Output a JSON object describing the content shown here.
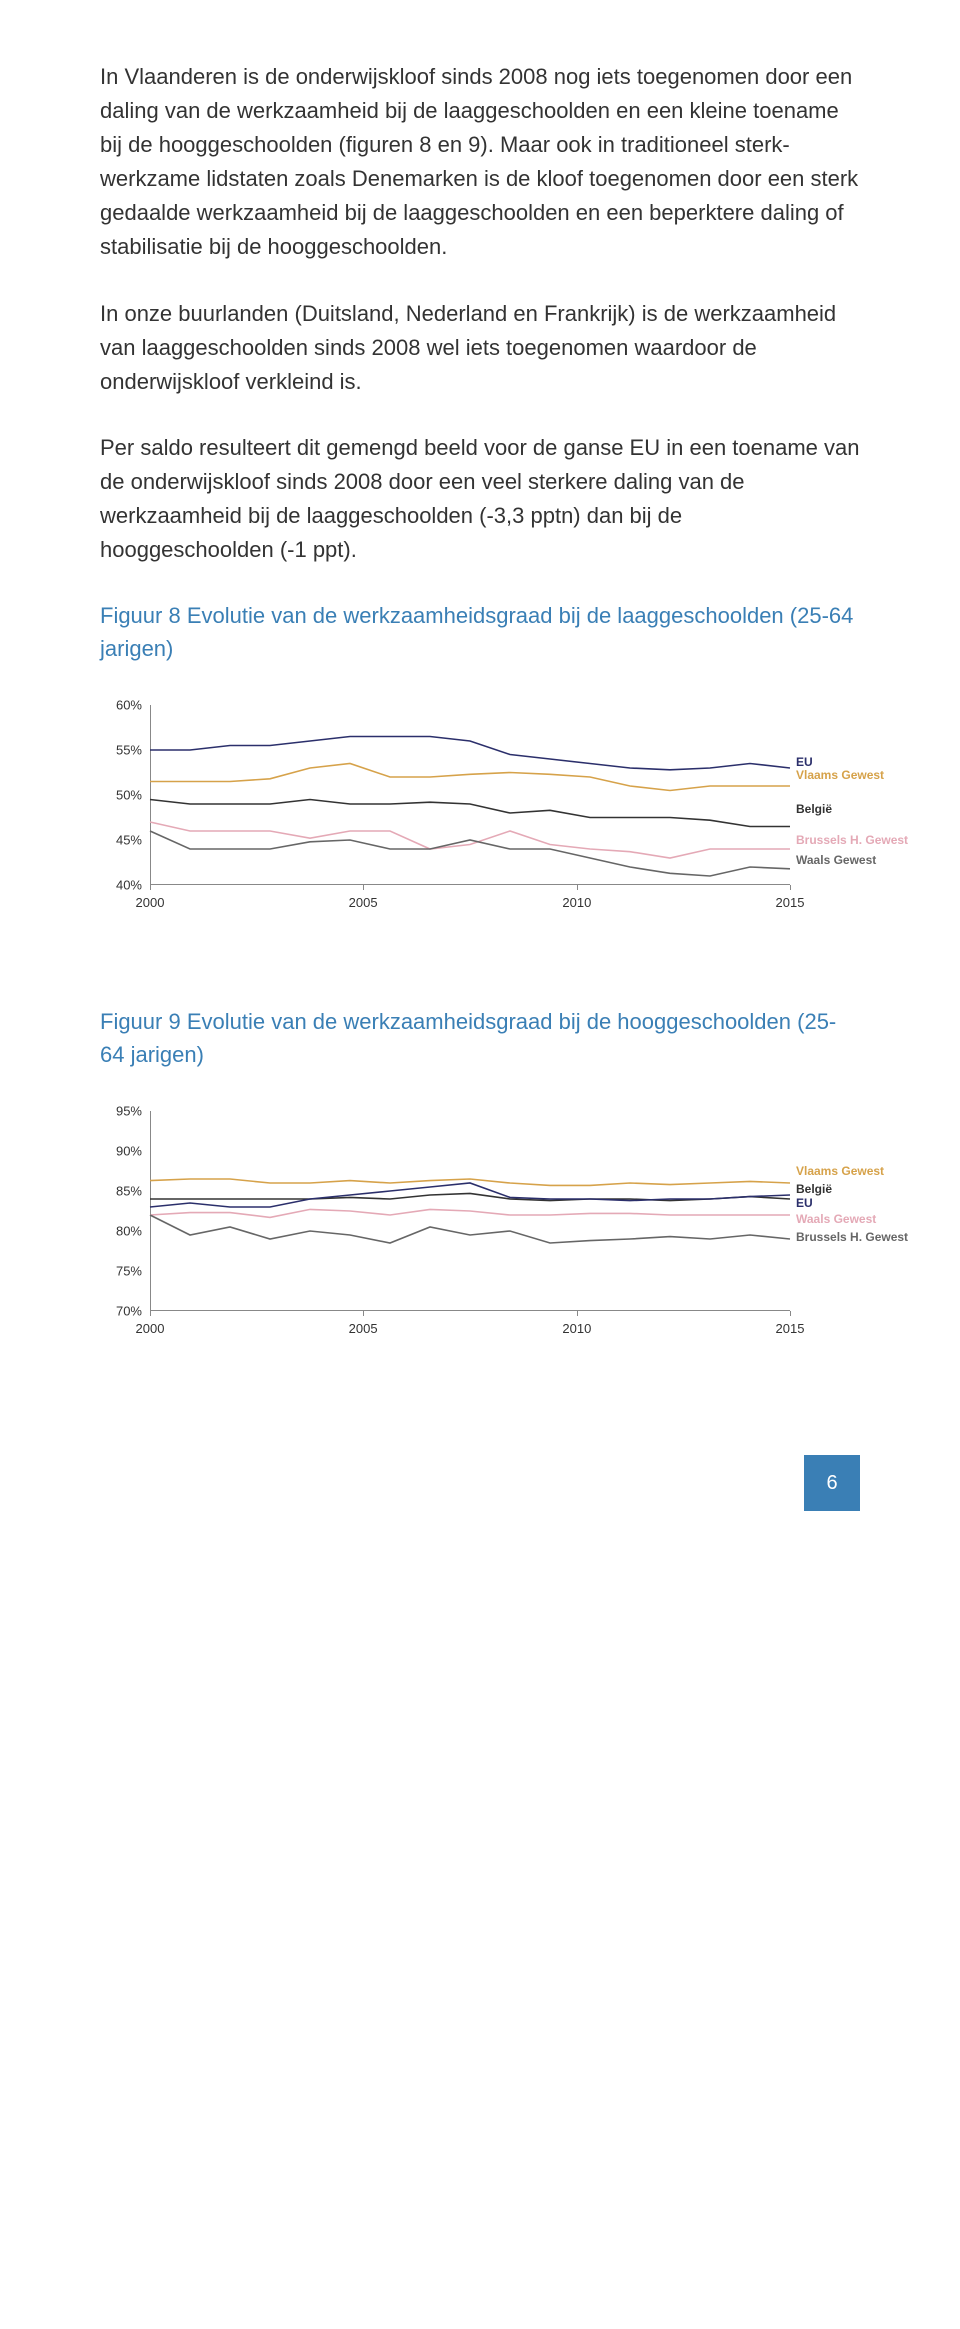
{
  "para1": "In Vlaanderen is de onderwijskloof sinds 2008 nog iets toegenomen door een daling van de werkzaamheid bij de laaggeschoolden en een kleine toename bij de hooggeschoolden (figuren 8 en 9). Maar ook in traditioneel sterk-werkzame lidstaten zoals Denemarken is de kloof toegenomen door een sterk gedaalde werkzaamheid bij de laaggeschoolden en een beperktere daling of stabilisatie bij de hooggeschoolden.",
  "para2": "In onze buurlanden (Duitsland, Nederland en Frankrijk) is de werkzaamheid van laaggeschoolden sinds 2008 wel iets toegenomen waardoor de onderwijskloof verkleind is.",
  "para3": "Per saldo resulteert dit gemengd beeld voor de ganse EU in een toename van de onderwijskloof sinds 2008 door een veel sterkere daling van de werkzaamheid bij de laaggeschoolden (-3,3 pptn) dan bij de hooggeschoolden (-1 ppt).",
  "fig8": {
    "prefix": "Figuur 8",
    "rest": "  Evolutie van de werkzaamheidsgraad bij de laaggeschoolden (25-64 jarigen)",
    "y_labels": [
      "60%",
      "55%",
      "50%",
      "45%",
      "40%"
    ],
    "y_min": 40,
    "y_max": 60,
    "x_labels": [
      "2000",
      "2005",
      "2010",
      "2015"
    ],
    "x_positions": [
      0,
      0.333,
      0.667,
      1.0
    ],
    "series": [
      {
        "name": "EU",
        "color": "#2b2f6b",
        "y": [
          55,
          55,
          55.5,
          55.5,
          56,
          56.5,
          56.5,
          56.5,
          56,
          54.5,
          54,
          53.5,
          53,
          52.8,
          53,
          53.5,
          53
        ],
        "label_y": 53.7
      },
      {
        "name": "Vlaams Gewest",
        "color": "#d6a24a",
        "y": [
          51.5,
          51.5,
          51.5,
          51.8,
          53,
          53.5,
          52,
          52,
          52.3,
          52.5,
          52.3,
          52,
          51,
          50.5,
          51,
          51,
          51
        ],
        "label_y": 52.3
      },
      {
        "name": "België",
        "color": "#333333",
        "y": [
          49.5,
          49,
          49,
          49,
          49.5,
          49,
          49,
          49.2,
          49,
          48,
          48.3,
          47.5,
          47.5,
          47.5,
          47.2,
          46.5,
          46.5
        ],
        "label_y": 48.5
      },
      {
        "name": "Brussels H. Gewest",
        "color": "#e4a9b6",
        "y": [
          47,
          46,
          46,
          46,
          45.2,
          46,
          46,
          44,
          44.5,
          46,
          44.5,
          44,
          43.7,
          43,
          44,
          44,
          44
        ],
        "label_y": 45
      },
      {
        "name": "Waals Gewest",
        "color": "#666666",
        "y": [
          46,
          44,
          44,
          44,
          44.8,
          45,
          44,
          44,
          45,
          44,
          44,
          43,
          42,
          41.3,
          41,
          42,
          41.8
        ],
        "label_y": 42.8
      }
    ]
  },
  "fig9": {
    "prefix": "Figuur 9",
    "rest": "  Evolutie van de werkzaamheidsgraad bij de hooggeschoolden (25-64 jarigen)",
    "y_labels": [
      "95%",
      "90%",
      "85%",
      "80%",
      "75%",
      "70%"
    ],
    "y_min": 70,
    "y_max": 95,
    "x_labels": [
      "2000",
      "2005",
      "2010",
      "2015"
    ],
    "x_positions": [
      0,
      0.333,
      0.667,
      1.0
    ],
    "series": [
      {
        "name": "Vlaams Gewest",
        "color": "#d6a24a",
        "y": [
          86.3,
          86.5,
          86.5,
          86,
          86,
          86.3,
          86,
          86.3,
          86.5,
          86,
          85.7,
          85.7,
          86,
          85.8,
          86,
          86.2,
          86
        ],
        "label_y": 87.5
      },
      {
        "name": "België",
        "color": "#333333",
        "y": [
          84,
          84,
          84,
          84,
          84,
          84.2,
          84,
          84.5,
          84.7,
          84,
          83.8,
          84,
          84,
          83.8,
          84,
          84.3,
          84
        ],
        "label_y": 85.3
      },
      {
        "name": "EU",
        "color": "#2b2f6b",
        "y": [
          83,
          83.5,
          83,
          83,
          84,
          84.5,
          85,
          85.5,
          86,
          84.2,
          84,
          84,
          83.8,
          84,
          84,
          84.3,
          84.5
        ],
        "label_y": 83.5
      },
      {
        "name": "Waals Gewest",
        "color": "#e4a9b6",
        "y": [
          82,
          82.3,
          82.3,
          81.7,
          82.7,
          82.5,
          82,
          82.7,
          82.5,
          82,
          82,
          82.2,
          82.2,
          82,
          82,
          82,
          82
        ],
        "label_y": 81.5
      },
      {
        "name": "Brussels H. Gewest",
        "color": "#666666",
        "y": [
          82,
          79.5,
          80.5,
          79,
          80,
          79.5,
          78.5,
          80.5,
          79.5,
          80,
          78.5,
          78.8,
          79,
          79.3,
          79,
          79.5,
          79
        ],
        "label_y": 79.3
      }
    ]
  },
  "page_number": "6",
  "colors": {
    "accent": "#3a7fb5",
    "text": "#333333"
  }
}
